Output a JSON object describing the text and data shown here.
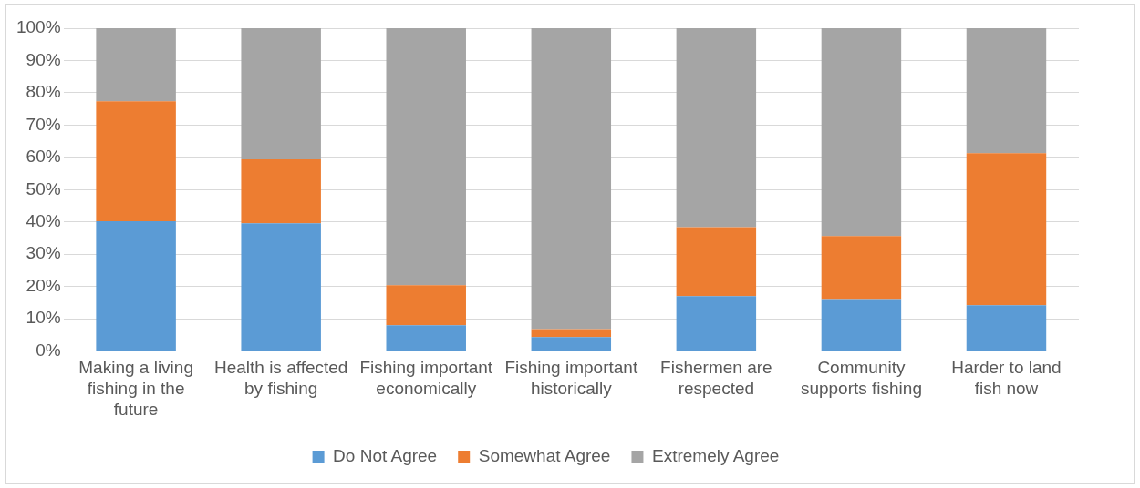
{
  "chart_data": {
    "type": "bar",
    "stacked": true,
    "categories": [
      "Making a living fishing in the future",
      "Health is affected by fishing",
      "Fishing important economically",
      "Fishing important historically",
      "Fishermen are respected",
      "Community supports fishing",
      "Harder to land fish now"
    ],
    "series": [
      {
        "name": "Do Not Agree",
        "color": "#5b9bd5",
        "values": [
          40.2,
          39.6,
          8.0,
          4.3,
          17.0,
          16.1,
          14.2
        ]
      },
      {
        "name": "Somewhat Agree",
        "color": "#ed7d31",
        "values": [
          37.2,
          19.8,
          12.4,
          2.5,
          21.4,
          19.5,
          47.1
        ]
      },
      {
        "name": "Extremely Agree",
        "color": "#a5a5a5",
        "values": [
          22.6,
          40.6,
          79.6,
          93.2,
          61.6,
          64.4,
          38.7
        ]
      }
    ],
    "ylim": [
      0,
      100
    ],
    "yticks": [
      {
        "value": 0,
        "label": "0%"
      },
      {
        "value": 10,
        "label": "10%"
      },
      {
        "value": 20,
        "label": "20%"
      },
      {
        "value": 30,
        "label": "30%"
      },
      {
        "value": 40,
        "label": "40%"
      },
      {
        "value": 50,
        "label": "50%"
      },
      {
        "value": 60,
        "label": "60%"
      },
      {
        "value": 70,
        "label": "70%"
      },
      {
        "value": 80,
        "label": "80%"
      },
      {
        "value": 90,
        "label": "90%"
      },
      {
        "value": 100,
        "label": "100%"
      }
    ],
    "grid": "y",
    "legend": "bottom"
  }
}
